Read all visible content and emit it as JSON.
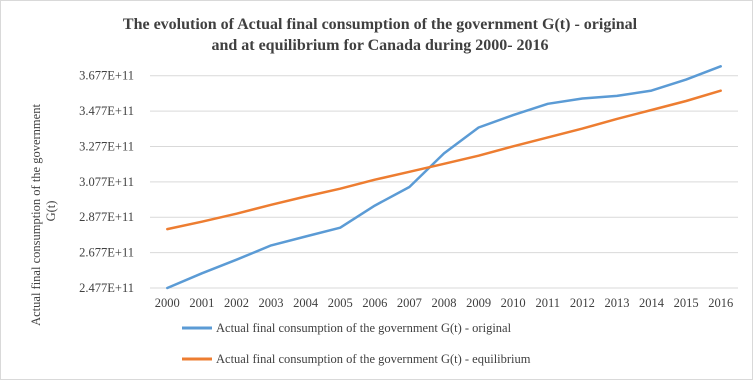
{
  "chart_data": {
    "type": "line",
    "title_lines": [
      "The evolution of Actual final consumption of the government G(t) - original",
      "and at equilibrium for Canada during 2000- 2016"
    ],
    "ylabel_lines": [
      "Actual final consumption of the government",
      "G(t)"
    ],
    "xlabel": "",
    "x": [
      "2000",
      "2001",
      "2002",
      "2003",
      "2004",
      "2005",
      "2006",
      "2007",
      "2008",
      "2009",
      "2010",
      "2011",
      "2012",
      "2013",
      "2014",
      "2015",
      "2016"
    ],
    "yticks": [
      247700000000,
      267700000000,
      287700000000,
      307700000000,
      327700000000,
      347700000000,
      367700000000
    ],
    "ytick_labels": [
      "2.477E+11",
      "2.677E+11",
      "2.877E+11",
      "3.077E+11",
      "3.277E+11",
      "3.477E+11",
      "3.677E+11"
    ],
    "ylim": [
      247700000000,
      377700000000
    ],
    "grid": true,
    "legend_position": "bottom",
    "series": [
      {
        "name": "Actual final consumption of the government G(t) - original",
        "color": "#5b9bd5",
        "values": [
          247700000000,
          256000000000,
          263700000000,
          271800000000,
          276800000000,
          281800000000,
          294300000000,
          304800000000,
          323800000000,
          338400000000,
          345400000000,
          351800000000,
          354800000000,
          356300000000,
          359300000000,
          365500000000,
          373000000000
        ]
      },
      {
        "name": "Actual final consumption of the government G(t) - equilibrium",
        "color": "#ed7d31",
        "values": [
          281000000000,
          285200000000,
          289700000000,
          294700000000,
          299400000000,
          303800000000,
          308900000000,
          313400000000,
          317900000000,
          322500000000,
          327800000000,
          332800000000,
          337800000000,
          343300000000,
          348300000000,
          353400000000,
          359200000000
        ]
      }
    ]
  }
}
